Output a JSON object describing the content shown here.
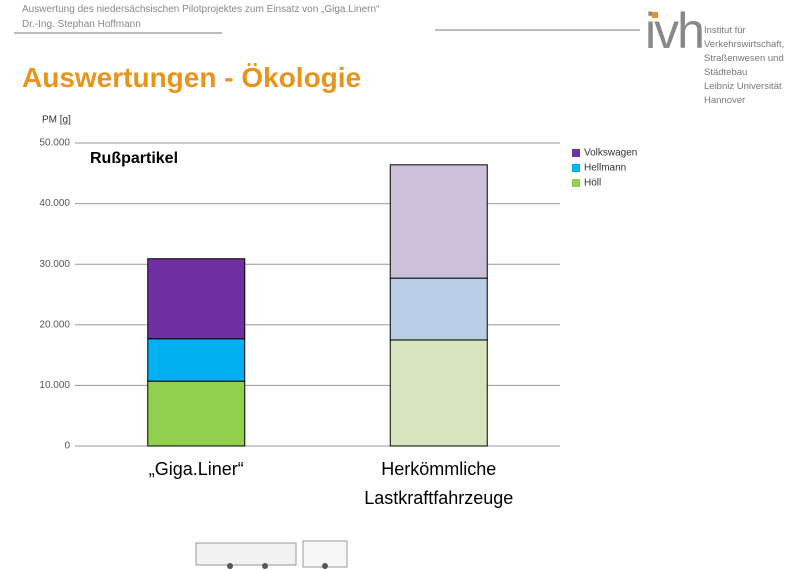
{
  "header": {
    "line1": "Auswertung des niedersächsischen Pilotprojektes zum Einsatz von „Giga.Linern“",
    "line2": "Dr.-Ing. Stephan Hoffmann"
  },
  "logo": {
    "mark": "ivh",
    "lines": [
      "Institut für Verkehrswirtschaft,",
      "Straßenwesen und Städtebau",
      "Leibniz Universität Hannover"
    ]
  },
  "slide_title": "Auswertungen - Ökologie",
  "chart_data": {
    "type": "stacked_bar",
    "title": "Rußpartikel",
    "y_label": "PM [g]",
    "categories": [
      "„Giga.Liner“",
      "Herkömmliche Lastkraftfahrzeuge"
    ],
    "series": [
      {
        "name": "Höll",
        "colors": [
          "#92d050",
          "#d7e4bd"
        ],
        "values": [
          10700,
          17500
        ]
      },
      {
        "name": "Hellmann",
        "colors": [
          "#00b0f0",
          "#b9cde5"
        ],
        "values": [
          7000,
          10200
        ]
      },
      {
        "name": "Volkswagen",
        "colors": [
          "#7030a0",
          "#ccc1da"
        ],
        "values": [
          13200,
          18700
        ]
      }
    ],
    "ylim": [
      0,
      50000
    ],
    "yticks": [
      0,
      {
        "value": 10000,
        "label": "10.000"
      },
      {
        "value": 20000,
        "label": "20.000"
      },
      {
        "value": 30000,
        "label": "30.000"
      },
      {
        "value": 40000,
        "label": "40.000"
      },
      {
        "value": 50000,
        "label": "50.000"
      }
    ],
    "grid": true,
    "legend": "top-right"
  }
}
